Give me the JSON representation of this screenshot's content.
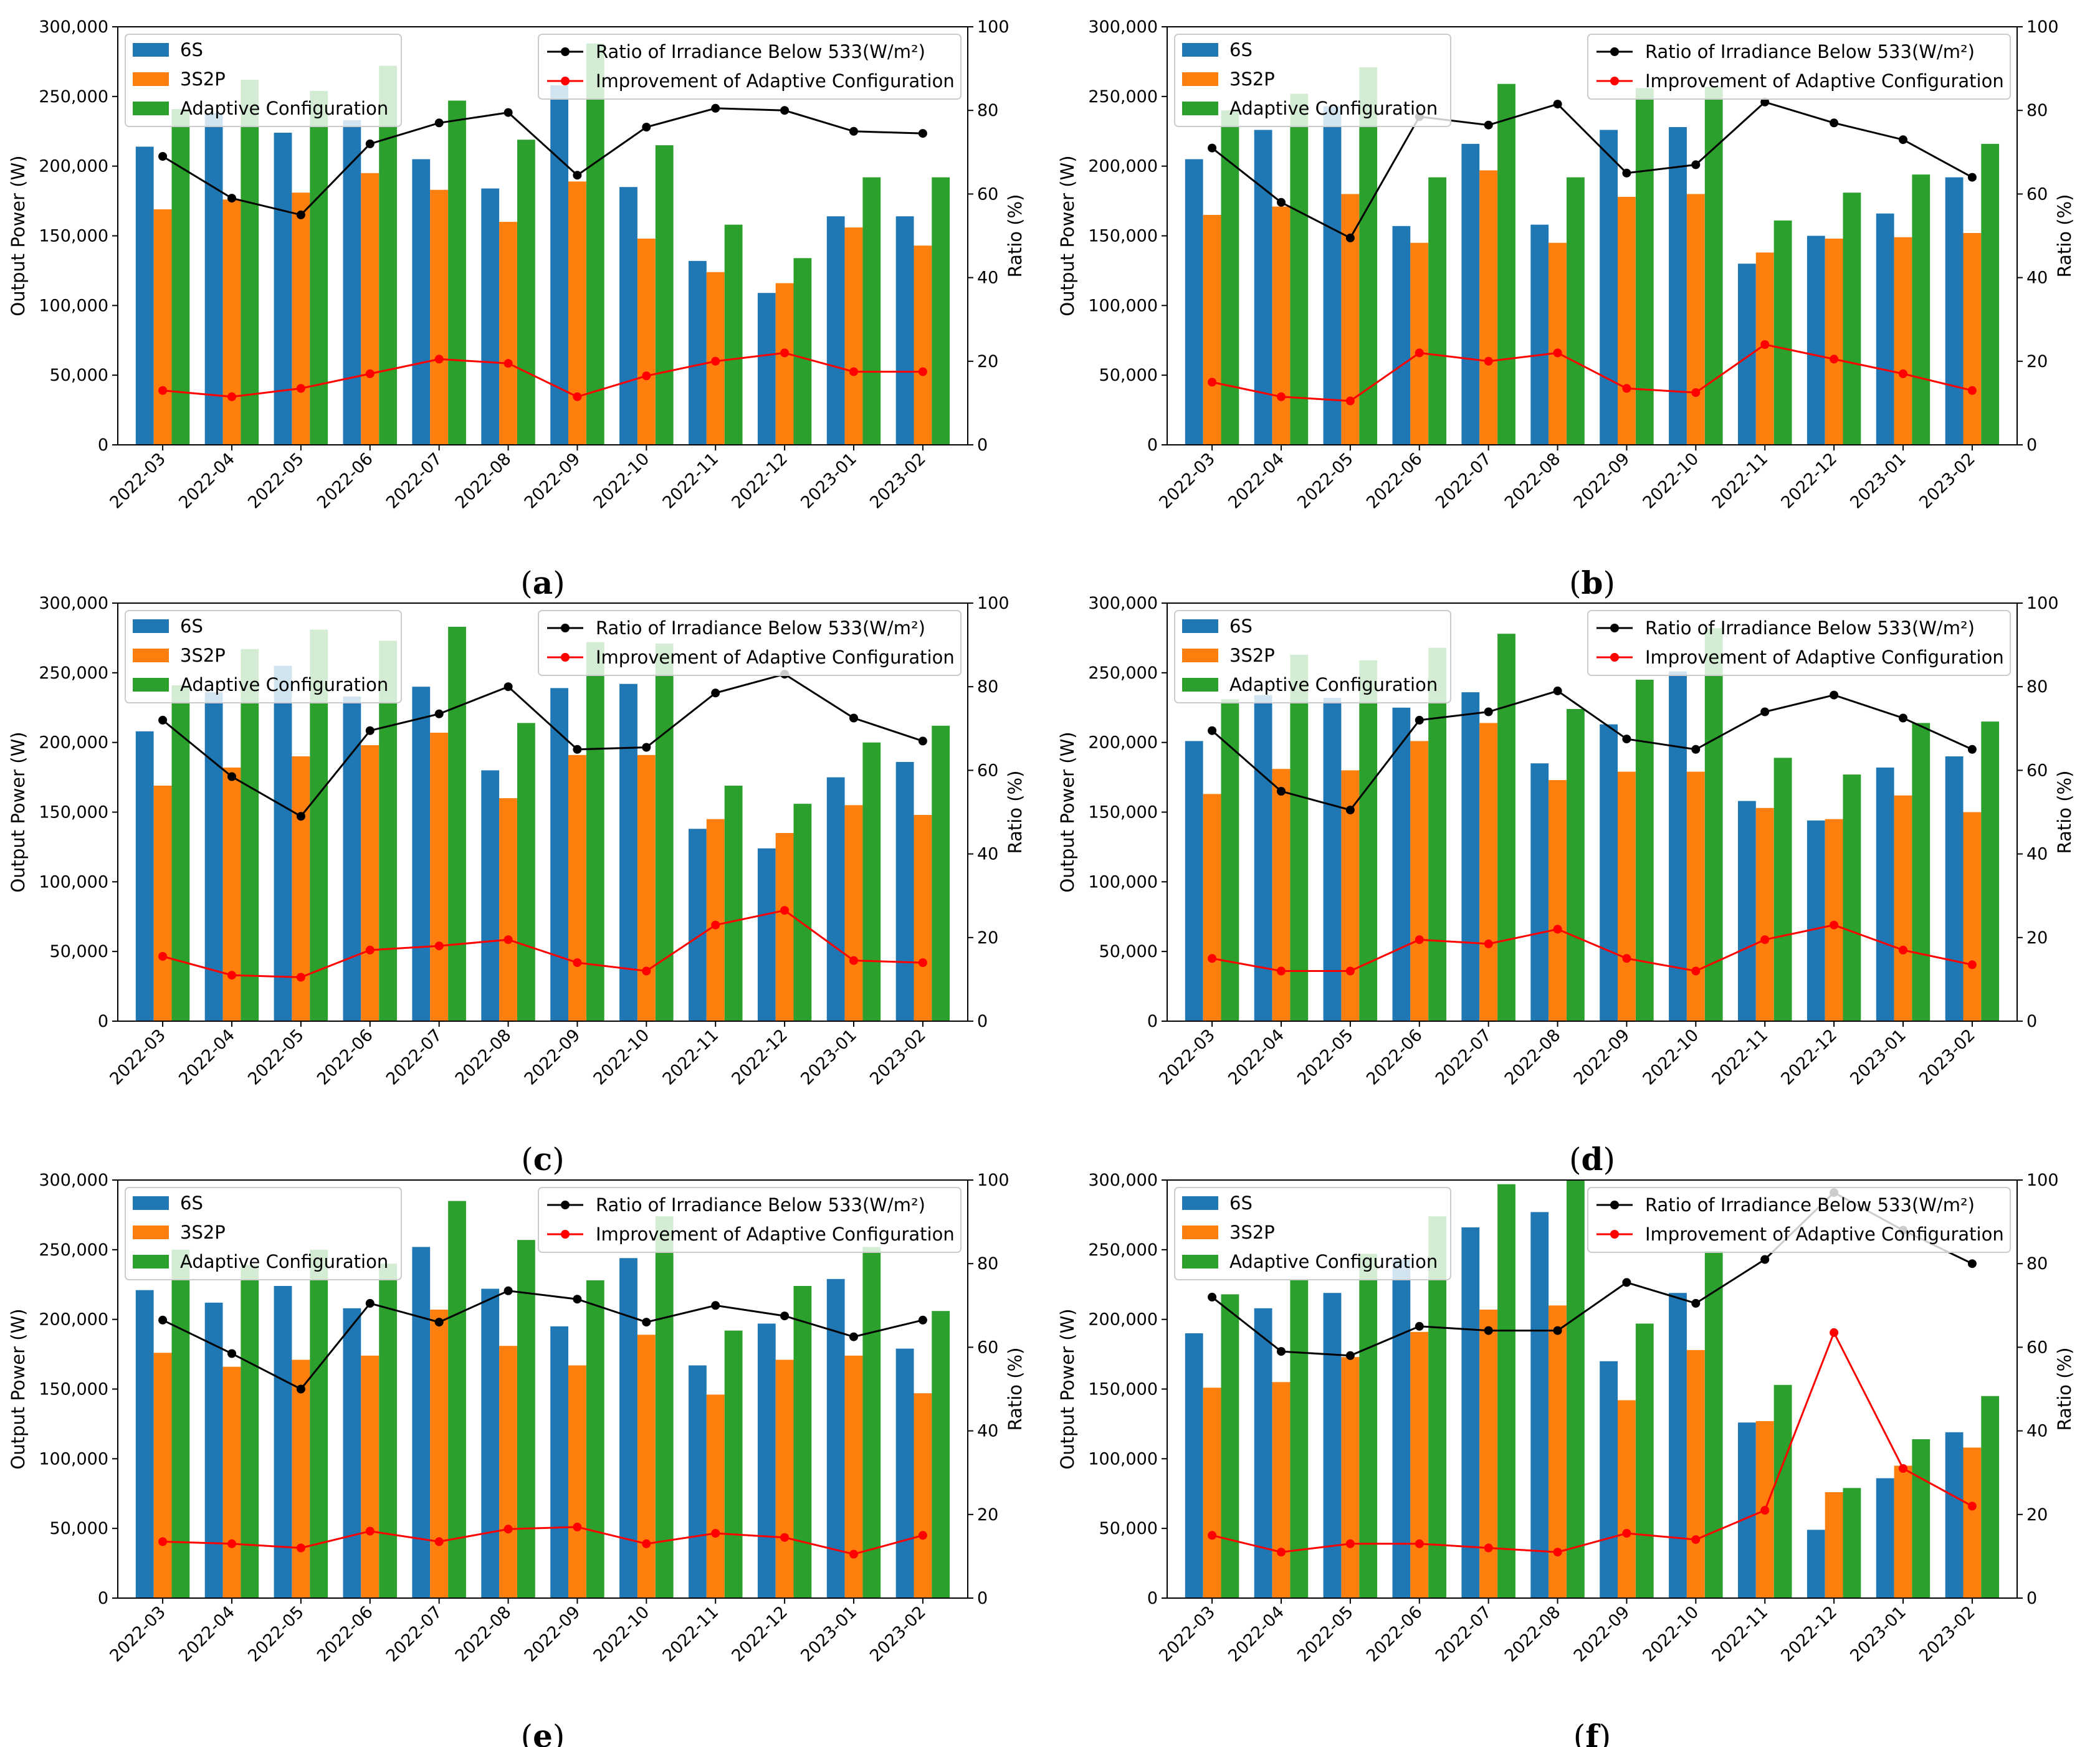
{
  "chart_data": [
    {
      "panel": "a",
      "type": "bar",
      "categories": [
        "2022-03",
        "2022-04",
        "2022-05",
        "2022-06",
        "2022-07",
        "2022-08",
        "2022-09",
        "2022-10",
        "2022-11",
        "2022-12",
        "2023-01",
        "2023-02"
      ],
      "series": [
        {
          "name": "6S",
          "axis": "left",
          "values": [
            214000,
            238000,
            224000,
            233000,
            205000,
            184000,
            258000,
            185000,
            132000,
            109000,
            164000,
            164000
          ]
        },
        {
          "name": "3S2P",
          "axis": "left",
          "values": [
            169000,
            176000,
            181000,
            195000,
            183000,
            160000,
            189000,
            148000,
            124000,
            116000,
            156000,
            143000
          ]
        },
        {
          "name": "Adaptive Configuration",
          "axis": "left",
          "values": [
            241000,
            262000,
            254000,
            272000,
            247000,
            219000,
            288000,
            215000,
            158000,
            134000,
            192000,
            192000
          ]
        },
        {
          "name": "Ratio of Irradiance Below 533(W/m²)",
          "axis": "right",
          "values": [
            69,
            59,
            55,
            72,
            77,
            79.5,
            64.5,
            76,
            80.5,
            80,
            75,
            74.5
          ]
        },
        {
          "name": "Improvement of Adaptive Configuration",
          "axis": "right",
          "values": [
            13,
            11.5,
            13.5,
            17,
            20.5,
            19.5,
            11.5,
            16.5,
            20,
            22,
            17.5,
            17.5
          ]
        }
      ]
    },
    {
      "panel": "b",
      "type": "bar",
      "categories": [
        "2022-03",
        "2022-04",
        "2022-05",
        "2022-06",
        "2022-07",
        "2022-08",
        "2022-09",
        "2022-10",
        "2022-11",
        "2022-12",
        "2023-01",
        "2023-02"
      ],
      "series": [
        {
          "name": "6S",
          "axis": "left",
          "values": [
            205000,
            226000,
            243000,
            157000,
            216000,
            158000,
            226000,
            228000,
            130000,
            150000,
            166000,
            192000
          ]
        },
        {
          "name": "3S2P",
          "axis": "left",
          "values": [
            165000,
            171000,
            180000,
            145000,
            197000,
            145000,
            178000,
            180000,
            138000,
            148000,
            149000,
            152000
          ]
        },
        {
          "name": "Adaptive Configuration",
          "axis": "left",
          "values": [
            240000,
            252000,
            271000,
            192000,
            259000,
            192000,
            256000,
            257000,
            161000,
            181000,
            194000,
            216000
          ]
        },
        {
          "name": "Ratio of Irradiance Below 533(W/m²)",
          "axis": "right",
          "values": [
            71,
            58,
            49.5,
            78.5,
            76.5,
            81.5,
            65,
            67,
            82,
            77,
            73,
            64
          ]
        },
        {
          "name": "Improvement of Adaptive Configuration",
          "axis": "right",
          "values": [
            15,
            11.5,
            10.5,
            22,
            20,
            22,
            13.5,
            12.5,
            24,
            20.5,
            17,
            13
          ]
        }
      ]
    },
    {
      "panel": "c",
      "type": "bar",
      "categories": [
        "2022-03",
        "2022-04",
        "2022-05",
        "2022-06",
        "2022-07",
        "2022-08",
        "2022-09",
        "2022-10",
        "2022-11",
        "2022-12",
        "2023-01",
        "2023-02"
      ],
      "series": [
        {
          "name": "6S",
          "axis": "left",
          "values": [
            208000,
            236000,
            255000,
            233000,
            240000,
            180000,
            239000,
            242000,
            138000,
            124000,
            175000,
            186000
          ]
        },
        {
          "name": "3S2P",
          "axis": "left",
          "values": [
            169000,
            182000,
            190000,
            198000,
            207000,
            160000,
            191000,
            191000,
            145000,
            135000,
            155000,
            148000
          ]
        },
        {
          "name": "Adaptive Configuration",
          "axis": "left",
          "values": [
            241000,
            267000,
            281000,
            273000,
            283000,
            214000,
            272000,
            271000,
            169000,
            156000,
            200000,
            212000
          ]
        },
        {
          "name": "Ratio of Irradiance Below 533(W/m²)",
          "axis": "right",
          "values": [
            72,
            58.5,
            49,
            69.5,
            73.5,
            80,
            65,
            65.5,
            78.5,
            83,
            72.5,
            67
          ]
        },
        {
          "name": "Improvement of Adaptive Configuration",
          "axis": "right",
          "values": [
            15.5,
            11,
            10.5,
            17,
            18,
            19.5,
            14,
            12,
            23,
            26.5,
            14.5,
            14
          ]
        }
      ]
    },
    {
      "panel": "d",
      "type": "bar",
      "categories": [
        "2022-03",
        "2022-04",
        "2022-05",
        "2022-06",
        "2022-07",
        "2022-08",
        "2022-09",
        "2022-10",
        "2022-11",
        "2022-12",
        "2023-01",
        "2023-02"
      ],
      "series": [
        {
          "name": "6S",
          "axis": "left",
          "values": [
            201000,
            234000,
            232000,
            225000,
            236000,
            185000,
            213000,
            251000,
            158000,
            144000,
            182000,
            190000
          ]
        },
        {
          "name": "3S2P",
          "axis": "left",
          "values": [
            163000,
            181000,
            180000,
            201000,
            214000,
            173000,
            179000,
            179000,
            153000,
            145000,
            162000,
            150000
          ]
        },
        {
          "name": "Adaptive Configuration",
          "axis": "left",
          "values": [
            231000,
            263000,
            259000,
            268000,
            278000,
            224000,
            245000,
            282000,
            189000,
            177000,
            214000,
            215000
          ]
        },
        {
          "name": "Ratio of Irradiance Below 533(W/m²)",
          "axis": "right",
          "values": [
            69.5,
            55,
            50.5,
            72,
            74,
            79,
            67.5,
            65,
            74,
            78,
            72.5,
            65
          ]
        },
        {
          "name": "Improvement of Adaptive Configuration",
          "axis": "right",
          "values": [
            15,
            12,
            12,
            19.5,
            18.5,
            22,
            15,
            12,
            19.5,
            23,
            17,
            13.5
          ]
        }
      ]
    },
    {
      "panel": "e",
      "type": "bar",
      "categories": [
        "2022-03",
        "2022-04",
        "2022-05",
        "2022-06",
        "2022-07",
        "2022-08",
        "2022-09",
        "2022-10",
        "2022-11",
        "2022-12",
        "2023-01",
        "2023-02"
      ],
      "series": [
        {
          "name": "6S",
          "axis": "left",
          "values": [
            221000,
            212000,
            224000,
            208000,
            252000,
            222000,
            195000,
            244000,
            167000,
            197000,
            229000,
            179000
          ]
        },
        {
          "name": "3S2P",
          "axis": "left",
          "values": [
            176000,
            166000,
            171000,
            174000,
            207000,
            181000,
            167000,
            189000,
            146000,
            171000,
            174000,
            147000
          ]
        },
        {
          "name": "Adaptive Configuration",
          "axis": "left",
          "values": [
            250000,
            239000,
            250000,
            240000,
            285000,
            257000,
            228000,
            274000,
            192000,
            224000,
            252000,
            206000
          ]
        },
        {
          "name": "Ratio of Irradiance Below 533(W/m²)",
          "axis": "right",
          "values": [
            66.5,
            58.5,
            50,
            70.5,
            66,
            73.5,
            71.5,
            66,
            70,
            67.5,
            62.5,
            66.5
          ]
        },
        {
          "name": "Improvement of Adaptive Configuration",
          "axis": "right",
          "values": [
            13.5,
            13,
            12,
            16,
            13.5,
            16.5,
            17,
            13,
            15.5,
            14.5,
            10.5,
            15
          ]
        }
      ]
    },
    {
      "panel": "f",
      "type": "bar",
      "categories": [
        "2022-03",
        "2022-04",
        "2022-05",
        "2022-06",
        "2022-07",
        "2022-08",
        "2022-09",
        "2022-10",
        "2022-11",
        "2022-12",
        "2023-01",
        "2023-02"
      ],
      "series": [
        {
          "name": "6S",
          "axis": "left",
          "values": [
            190000,
            208000,
            219000,
            243000,
            266000,
            277000,
            170000,
            219000,
            126000,
            49000,
            86000,
            119000
          ]
        },
        {
          "name": "3S2P",
          "axis": "left",
          "values": [
            151000,
            155000,
            173000,
            191000,
            207000,
            210000,
            142000,
            178000,
            127000,
            76000,
            95000,
            108000
          ]
        },
        {
          "name": "Adaptive Configuration",
          "axis": "left",
          "values": [
            218000,
            229000,
            247000,
            274000,
            297000,
            300000,
            197000,
            249000,
            153000,
            79000,
            114000,
            145000
          ]
        },
        {
          "name": "Ratio of Irradiance Below 533(W/m²)",
          "axis": "right",
          "values": [
            72,
            59,
            58,
            65,
            64,
            64,
            75.5,
            70.5,
            81,
            97,
            88,
            80
          ]
        },
        {
          "name": "Improvement of Adaptive Configuration",
          "axis": "right",
          "values": [
            15,
            11,
            13,
            13,
            12,
            11,
            15.5,
            14,
            21,
            63.5,
            31,
            22
          ]
        }
      ]
    }
  ],
  "shared": {
    "ylabel_left": "Output Power (W)",
    "ylabel_right": "Ratio (%)",
    "ylim_left": [
      0,
      300000
    ],
    "ylim_right": [
      0,
      100
    ],
    "left_ticks": [
      "0",
      "50,000",
      "100,000",
      "150,000",
      "200,000",
      "250,000",
      "300,000"
    ],
    "right_ticks": [
      "0",
      "20",
      "40",
      "60",
      "80",
      "100"
    ],
    "legend_left": [
      "6S",
      "3S2P",
      "Adaptive Configuration"
    ],
    "legend_right": [
      "Ratio of Irradiance Below 533(W/m²)",
      "Improvement of Adaptive Configuration"
    ],
    "colors": {
      "6S": "#1f77b4",
      "3S2P": "#ff7f0e",
      "Adaptive": "#2ca02c",
      "ratio": "#000000",
      "improvement": "#ff0000"
    },
    "panel_labels": [
      "(a)",
      "(b)",
      "(c)",
      "(d)",
      "(e)",
      "(f)"
    ]
  }
}
